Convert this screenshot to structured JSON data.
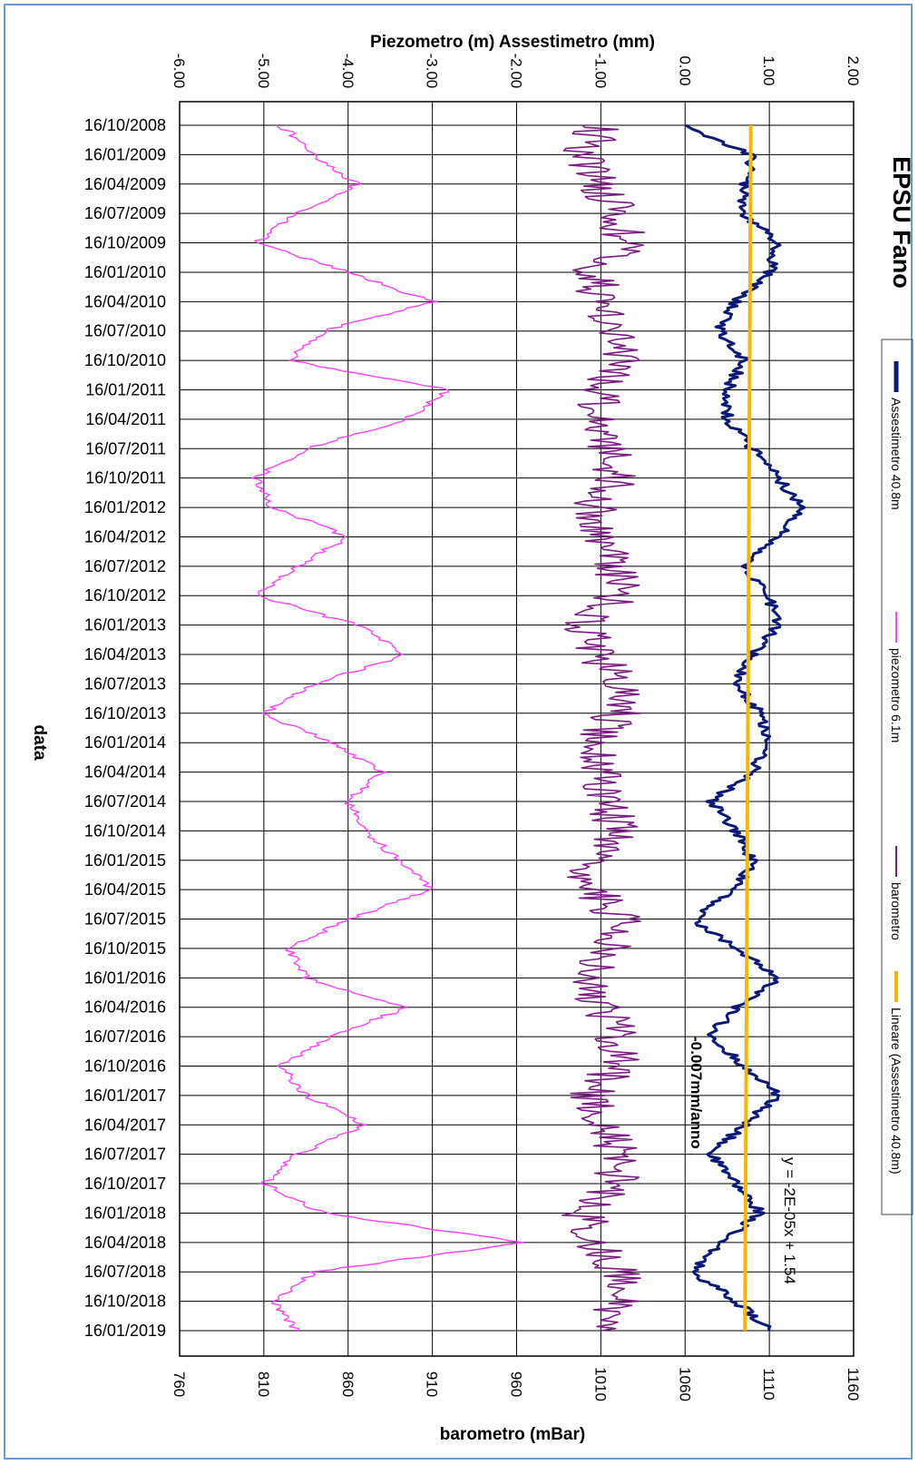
{
  "chart_data": {
    "type": "line",
    "title": "EPSU Fano",
    "orientation": "rotated 90° clockwise (dates run top-to-bottom)",
    "top_axis": {
      "label": "Piezometro (m) Assestimetro (mm)",
      "ticks": [
        "-6.00",
        "-5.00",
        "-4.00",
        "-3.00",
        "-2.00",
        "-1.00",
        "0.00",
        "1.00",
        "2.00"
      ],
      "range": [
        -6,
        2
      ]
    },
    "bottom_axis": {
      "label": "barometro (mBar)",
      "ticks": [
        "760",
        "810",
        "860",
        "910",
        "960",
        "1010",
        "1060",
        "1110",
        "1160"
      ],
      "range": [
        760,
        1160
      ]
    },
    "date_axis": {
      "label": "data",
      "ticks": [
        "16/10/2008",
        "16/01/2009",
        "16/04/2009",
        "16/07/2009",
        "16/10/2009",
        "16/01/2010",
        "16/04/2010",
        "16/07/2010",
        "16/10/2010",
        "16/01/2011",
        "16/04/2011",
        "16/07/2011",
        "16/10/2011",
        "16/01/2012",
        "16/04/2012",
        "16/07/2012",
        "16/10/2012",
        "16/01/2013",
        "16/04/2013",
        "16/07/2013",
        "16/10/2013",
        "16/01/2014",
        "16/04/2014",
        "16/07/2014",
        "16/10/2014",
        "16/01/2015",
        "16/04/2015",
        "16/07/2015",
        "16/10/2015",
        "16/01/2016",
        "16/04/2016",
        "16/07/2016",
        "16/10/2016",
        "16/01/2017",
        "16/04/2017",
        "16/07/2017",
        "16/10/2017",
        "16/01/2018",
        "16/04/2018",
        "16/07/2018",
        "16/10/2018",
        "16/01/2019"
      ]
    },
    "grid": true,
    "legend_position": "right",
    "series": [
      {
        "name": "Assestimetro 40.8m",
        "axis": "top",
        "color": "#0b1a7a",
        "x": [
          "16/10/2008",
          "16/01/2009",
          "16/04/2009",
          "16/07/2009",
          "16/10/2009",
          "16/01/2010",
          "16/04/2010",
          "16/07/2010",
          "16/10/2010",
          "16/01/2011",
          "16/04/2011",
          "16/07/2011",
          "16/10/2011",
          "16/01/2012",
          "16/04/2012",
          "16/07/2012",
          "16/10/2012",
          "16/01/2013",
          "16/04/2013",
          "16/07/2013",
          "16/10/2013",
          "16/01/2014",
          "16/04/2014",
          "16/07/2014",
          "16/10/2014",
          "16/01/2015",
          "16/04/2015",
          "16/07/2015",
          "16/10/2015",
          "16/01/2016",
          "16/04/2016",
          "16/07/2016",
          "16/10/2016",
          "16/01/2017",
          "16/04/2017",
          "16/07/2017",
          "16/10/2017",
          "16/01/2018",
          "16/04/2018",
          "16/07/2018",
          "16/10/2018",
          "16/01/2019"
        ],
        "values": [
          0.0,
          0.8,
          0.7,
          0.7,
          1.1,
          1.0,
          0.6,
          0.4,
          0.7,
          0.5,
          0.5,
          0.8,
          1.1,
          1.4,
          1.1,
          0.7,
          1.0,
          1.1,
          0.8,
          0.6,
          0.9,
          1.0,
          0.8,
          0.3,
          0.6,
          0.8,
          0.6,
          0.1,
          0.6,
          1.1,
          0.6,
          0.3,
          0.7,
          1.1,
          0.7,
          0.3,
          0.6,
          0.9,
          0.4,
          0.1,
          0.6,
          1.0
        ]
      },
      {
        "name": "piezometro 6.1m",
        "axis": "top",
        "color": "#ff40ff",
        "x": [
          "16/10/2008",
          "16/01/2009",
          "16/04/2009",
          "16/07/2009",
          "16/10/2009",
          "16/01/2010",
          "16/04/2010",
          "16/07/2010",
          "16/10/2010",
          "16/01/2011",
          "16/04/2011",
          "16/07/2011",
          "16/10/2011",
          "16/01/2012",
          "16/04/2012",
          "16/07/2012",
          "16/10/2012",
          "16/01/2013",
          "16/04/2013",
          "16/07/2013",
          "16/10/2013",
          "16/01/2014",
          "16/04/2014",
          "16/07/2014",
          "16/10/2014",
          "16/01/2015",
          "16/04/2015",
          "16/07/2015",
          "16/10/2015",
          "16/01/2016",
          "16/04/2016",
          "16/07/2016",
          "16/10/2016",
          "16/01/2017",
          "16/04/2017",
          "16/07/2017",
          "16/10/2017",
          "16/01/2018",
          "16/04/2018",
          "16/07/2018",
          "16/10/2018",
          "16/01/2019"
        ],
        "values": [
          -4.8,
          -4.4,
          -3.9,
          -4.6,
          -5.1,
          -4.0,
          -3.0,
          -4.3,
          -4.7,
          -2.8,
          -3.3,
          -4.5,
          -5.1,
          -4.9,
          -4.0,
          -4.6,
          -5.1,
          -3.9,
          -3.3,
          -4.4,
          -5.0,
          -4.2,
          -3.6,
          -4.0,
          -3.8,
          -3.4,
          -3.0,
          -4.0,
          -4.7,
          -4.5,
          -3.3,
          -4.2,
          -4.8,
          -4.5,
          -3.8,
          -4.6,
          -5.0,
          -4.3,
          -1.9,
          -4.4,
          -4.9,
          -4.6
        ]
      },
      {
        "name": "barometro",
        "axis": "bottom",
        "color": "#7b1a82",
        "x": [
          "16/10/2008",
          "16/01/2009",
          "16/04/2009",
          "16/07/2009",
          "16/10/2009",
          "16/01/2010",
          "16/04/2010",
          "16/07/2010",
          "16/10/2010",
          "16/01/2011",
          "16/04/2011",
          "16/07/2011",
          "16/10/2011",
          "16/01/2012",
          "16/04/2012",
          "16/07/2012",
          "16/10/2012",
          "16/01/2013",
          "16/04/2013",
          "16/07/2013",
          "16/10/2013",
          "16/01/2014",
          "16/04/2014",
          "16/07/2014",
          "16/10/2014",
          "16/01/2015",
          "16/04/2015",
          "16/07/2015",
          "16/10/2015",
          "16/01/2016",
          "16/04/2016",
          "16/07/2016",
          "16/10/2016",
          "16/01/2017",
          "16/04/2017",
          "16/07/2017",
          "16/10/2017",
          "16/01/2018",
          "16/04/2018",
          "16/07/2018",
          "16/10/2018",
          "16/01/2019"
        ],
        "values": [
          1010,
          1000,
          1010,
          1020,
          1025,
          1005,
          1010,
          1020,
          1020,
          1010,
          1010,
          1015,
          1020,
          1005,
          1010,
          1020,
          1020,
          1000,
          1010,
          1020,
          1020,
          1005,
          1010,
          1015,
          1020,
          1000,
          1005,
          1020,
          1020,
          1000,
          1010,
          1020,
          1020,
          1005,
          1010,
          1020,
          1020,
          1000,
          1005,
          1020,
          1020,
          1010
        ]
      },
      {
        "name": "Lineare (Assestimetro 40.8m)",
        "axis": "top",
        "color": "#f5b800",
        "x": [
          "16/10/2008",
          "16/01/2019"
        ],
        "values": [
          0.78,
          0.71
        ]
      }
    ],
    "annotations": [
      "y = -2E-05x + 1.54",
      "-0.007mm/anno"
    ]
  }
}
